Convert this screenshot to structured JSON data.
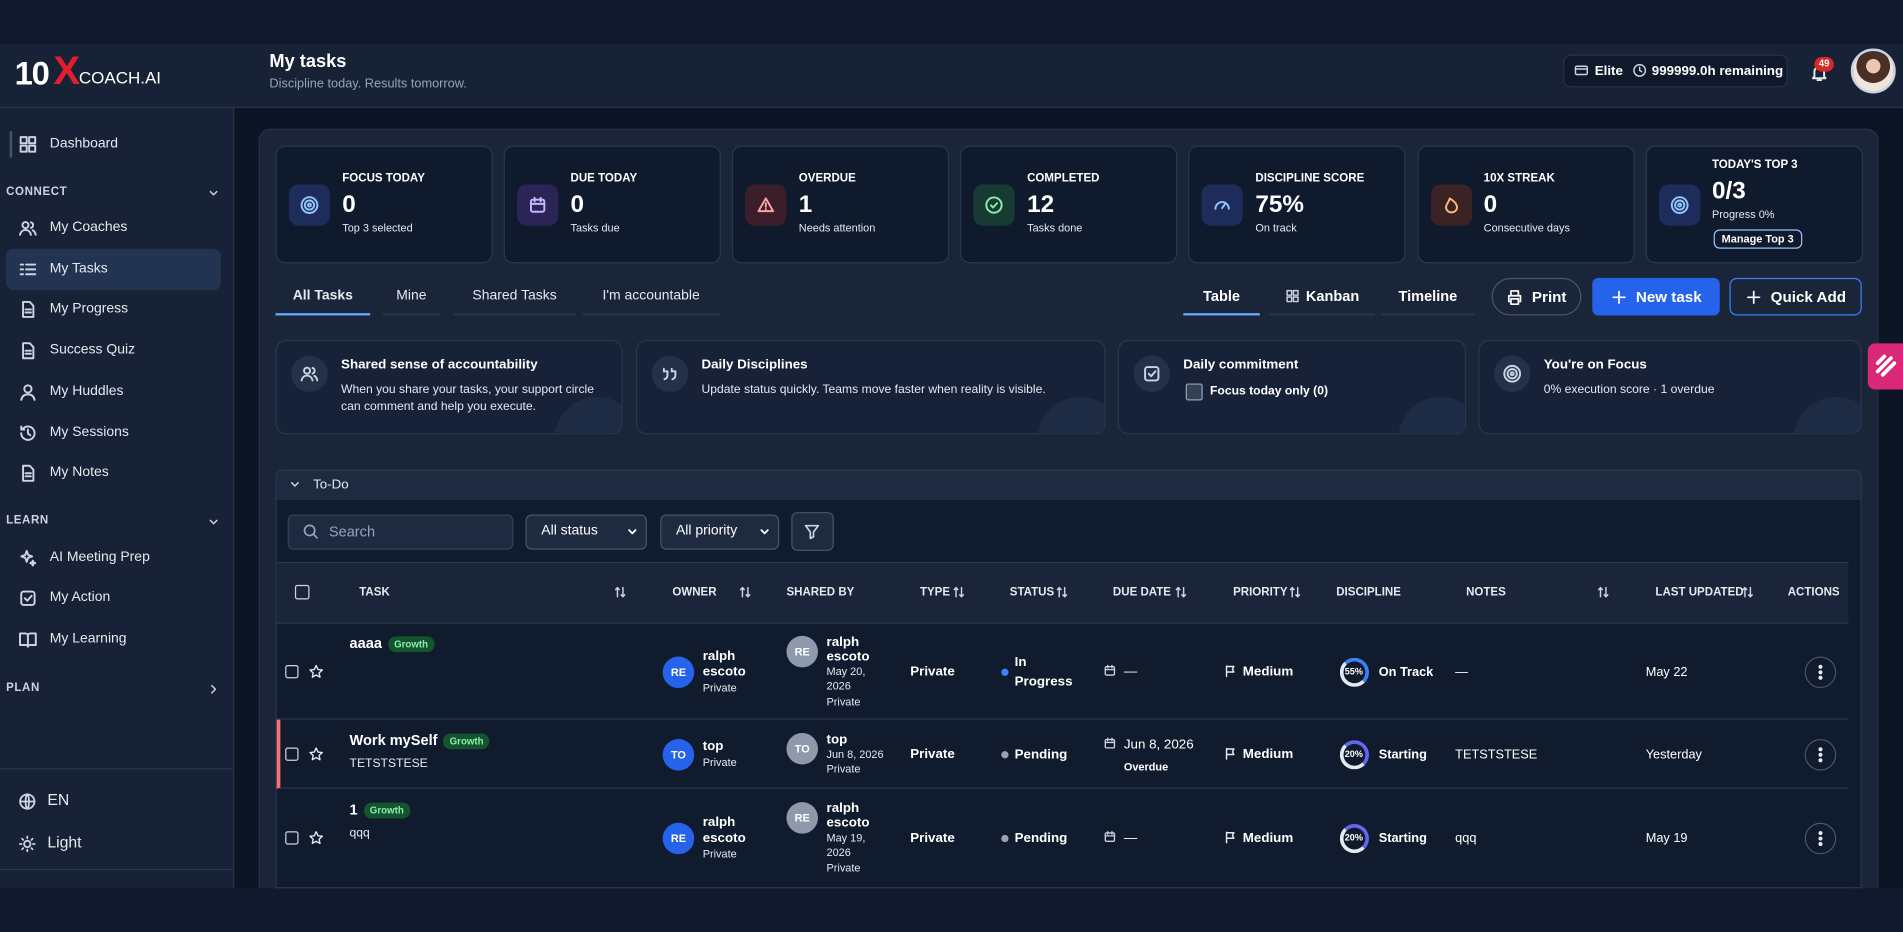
{
  "brand": {
    "logo_number": "10",
    "logo_x": "X",
    "logo_text": "COACH.AI"
  },
  "header": {
    "title": "My tasks",
    "subtitle": "Discipline today. Results tomorrow.",
    "plan": "Elite",
    "remaining": "999999.0h remaining",
    "notifications": 49
  },
  "sidebar": {
    "top": [
      {
        "label": "Dashboard"
      }
    ],
    "sections": [
      {
        "title": "CONNECT",
        "items": [
          {
            "label": "My Coaches"
          },
          {
            "label": "My Tasks",
            "active": true
          },
          {
            "label": "My Progress"
          },
          {
            "label": "Success Quiz"
          },
          {
            "label": "My Huddles"
          },
          {
            "label": "My Sessions"
          },
          {
            "label": "My Notes"
          }
        ]
      },
      {
        "title": "LEARN",
        "items": [
          {
            "label": "AI Meeting Prep"
          },
          {
            "label": "My Action"
          },
          {
            "label": "My Learning"
          }
        ]
      },
      {
        "title": "PLAN",
        "items": []
      }
    ],
    "footer": [
      {
        "label": "EN"
      },
      {
        "label": "Light"
      }
    ]
  },
  "stats": [
    {
      "label": "FOCUS TODAY",
      "value": 0,
      "note": "Top 3 selected"
    },
    {
      "label": "DUE TODAY",
      "value": 0,
      "note": "Tasks due"
    },
    {
      "label": "OVERDUE",
      "value": 1,
      "note": "Needs attention"
    },
    {
      "label": "COMPLETED",
      "value": 12,
      "note": "Tasks done"
    },
    {
      "label": "DISCIPLINE SCORE",
      "value": "75%",
      "note": "On track"
    },
    {
      "label": "10X STREAK",
      "value": 0,
      "note": "Consecutive days"
    },
    {
      "label": "TODAY'S TOP 3",
      "value": "0/3",
      "note": "Progress 0%",
      "button": "Manage Top 3"
    }
  ],
  "tabs": [
    "All Tasks",
    "Mine",
    "Shared Tasks",
    "I'm accountable"
  ],
  "views": [
    "Table",
    "Kanban",
    "Timeline"
  ],
  "actions": [
    "Print",
    "New task",
    "Quick Add"
  ],
  "info_cards": [
    {
      "title": "Shared sense of accountability",
      "text": "When you share your tasks, your support circle can comment and help you execute."
    },
    {
      "title": "Daily Disciplines",
      "text": "Update status quickly. Teams move faster when reality is visible."
    },
    {
      "title": "Daily commitment",
      "checkbox": "Focus today only (0)"
    },
    {
      "title": "You're on Focus",
      "text": "0% execution score · 1 overdue"
    }
  ],
  "section": "To-Do",
  "filters": {
    "search": "Search",
    "status": "All status",
    "priority": "All priority"
  },
  "table": {
    "columns": [
      {
        "label": "TASK",
        "sortable": true
      },
      {
        "label": "OWNER",
        "sortable": true
      },
      {
        "label": "SHARED BY"
      },
      {
        "label": "TYPE",
        "sortable": true
      },
      {
        "label": "STATUS",
        "sortable": true
      },
      {
        "label": "DUE DATE",
        "sortable": true
      },
      {
        "label": "PRIORITY",
        "sortable": true
      },
      {
        "label": "DISCIPLINE"
      },
      {
        "label": "NOTES",
        "sortable": true
      },
      {
        "label": "LAST UPDATED",
        "sortable": true
      },
      {
        "label": "ACTIONS"
      }
    ],
    "rows": [
      {
        "task": "aaaa",
        "tag": "Growth",
        "owner_initials": "RE",
        "owner": "ralph escoto",
        "owner_type": "Private",
        "shared_initials": "RE",
        "shared_by": "ralph escoto",
        "shared_date": "May 20, 2026",
        "shared_type": "Private",
        "type": "Private",
        "status": "In Progress",
        "due": "—",
        "priority": "Medium",
        "discipline": "55%",
        "discipline_label": "On Track",
        "notes": "—",
        "updated": "May 22"
      },
      {
        "task": "Work mySelf",
        "tag": "Growth",
        "description": "TETSTSTESE",
        "owner_initials": "TO",
        "owner": "top",
        "owner_type": "Private",
        "shared_initials": "TO",
        "shared_by": "top",
        "shared_date": "Jun 8, 2026",
        "shared_type": "Private",
        "type": "Private",
        "status": "Pending",
        "due": "Jun 8, 2026",
        "due_note": "Overdue",
        "priority": "Medium",
        "discipline": "20%",
        "discipline_label": "Starting",
        "notes": "TETSTSTESE",
        "updated": "Yesterday"
      },
      {
        "task": "1",
        "tag": "Growth",
        "description": "qqq",
        "owner_initials": "RE",
        "owner": "ralph escoto",
        "owner_type": "Private",
        "shared_initials": "RE",
        "shared_by": "ralph escoto",
        "shared_date": "May 19, 2026",
        "shared_type": "Private",
        "type": "Private",
        "status": "Pending",
        "due": "—",
        "priority": "Medium",
        "discipline": "20%",
        "discipline_label": "Starting",
        "notes": "qqq",
        "updated": "May 19"
      }
    ]
  }
}
